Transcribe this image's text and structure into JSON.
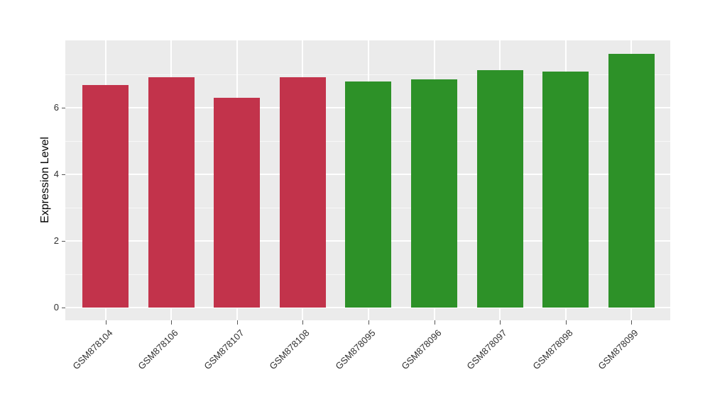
{
  "chart_data": {
    "type": "bar",
    "title": "",
    "xlabel": "",
    "ylabel": "Expression Level",
    "categories": [
      "GSM878104",
      "GSM878106",
      "GSM878107",
      "GSM878108",
      "GSM878095",
      "GSM878096",
      "GSM878097",
      "GSM878098",
      "GSM878099"
    ],
    "values": [
      6.68,
      6.92,
      6.3,
      6.92,
      6.79,
      6.85,
      7.13,
      7.09,
      7.62
    ],
    "bar_colors": [
      "#C2334B",
      "#C2334B",
      "#C2334B",
      "#C2334B",
      "#2D9128",
      "#2D9128",
      "#2D9128",
      "#2D9128",
      "#2D9128"
    ],
    "groups": [
      {
        "name": "group-red",
        "color": "#C2334B",
        "categories": [
          "GSM878104",
          "GSM878106",
          "GSM878107",
          "GSM878108"
        ]
      },
      {
        "name": "group-green",
        "color": "#2D9128",
        "categories": [
          "GSM878095",
          "GSM878096",
          "GSM878097",
          "GSM878098",
          "GSM878099"
        ]
      }
    ],
    "y_ticks": [
      0,
      2,
      4,
      6
    ],
    "y_minor_ticks": [
      1,
      3,
      5,
      7
    ],
    "ylim": [
      0,
      8.02
    ],
    "x_tick_label_rotation_deg": 45,
    "grid": true,
    "legend": "none",
    "panel_bg_color": "#EBEBEB",
    "grid_color": "#FFFFFF",
    "axis_text_color": "#303030"
  }
}
